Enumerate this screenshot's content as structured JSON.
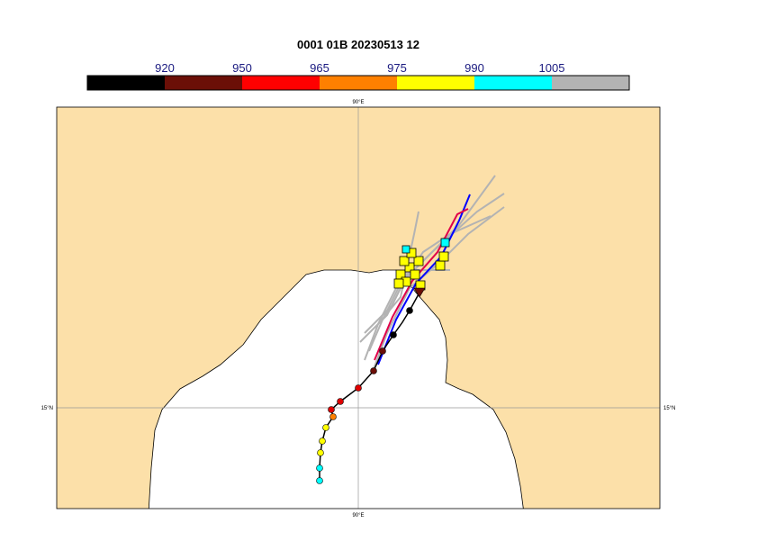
{
  "title": "0001 01B 20230513 12",
  "colorbar": {
    "labels": [
      "920",
      "950",
      "965",
      "975",
      "990",
      "1005"
    ]
  },
  "map": {
    "top_label": "90°E",
    "bottom_label": "90°E",
    "left_label": "15°N",
    "right_label": "15°N"
  }
}
